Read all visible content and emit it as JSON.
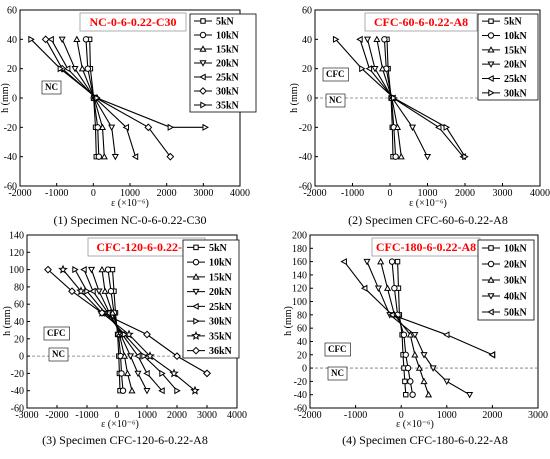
{
  "chart_data": [
    {
      "type": "line",
      "title": "NC-0-6-0.22-C30",
      "caption": "(1) Specimen NC-0-6-0.22-C30",
      "xlabel": "ε (×10⁻⁶)",
      "ylabel": "h (mm)",
      "xlim": [
        -2000,
        4000
      ],
      "ylim": [
        -60,
        60
      ],
      "xticks": [
        -2000,
        -1000,
        0,
        1000,
        2000,
        3000,
        4000
      ],
      "yticks": [
        -60,
        -40,
        -20,
        0,
        20,
        40,
        60
      ],
      "grid": false,
      "legend_position": "top-right",
      "regions": [
        {
          "label": "NC"
        }
      ],
      "series": [
        {
          "name": "5kN",
          "marker": "square",
          "x": [
            -100,
            -80,
            10,
            60,
            80
          ],
          "y": [
            40,
            20,
            0,
            -20,
            -40
          ]
        },
        {
          "name": "10kN",
          "marker": "circle",
          "x": [
            -200,
            -150,
            10,
            120,
            150
          ],
          "y": [
            40,
            20,
            0,
            -20,
            -40
          ]
        },
        {
          "name": "15kN",
          "marker": "triangle-up",
          "x": [
            -450,
            -300,
            20,
            250,
            300
          ],
          "y": [
            40,
            20,
            0,
            -20,
            -40
          ]
        },
        {
          "name": "20kN",
          "marker": "triangle-down",
          "x": [
            -850,
            -500,
            30,
            500,
            600
          ],
          "y": [
            40,
            20,
            0,
            -20,
            -40
          ]
        },
        {
          "name": "25kN",
          "marker": "triangle-left",
          "x": [
            -1150,
            -700,
            50,
            900,
            1150
          ],
          "y": [
            40,
            20,
            0,
            -20,
            -40
          ]
        },
        {
          "name": "30kN",
          "marker": "diamond",
          "x": [
            -1300,
            -850,
            80,
            1500,
            2100
          ],
          "y": [
            40,
            20,
            0,
            -20,
            -40
          ]
        },
        {
          "name": "35kN",
          "marker": "triangle-right",
          "x": [
            -1700,
            -900,
            100,
            2100,
            3050
          ],
          "y": [
            40,
            20,
            0,
            -20,
            -20
          ]
        }
      ]
    },
    {
      "type": "line",
      "title": "CFC-60-6-0.22-A8",
      "caption": "(2) Specimen CFC-60-6-0.22-A8",
      "xlabel": "ε (×10⁻⁶)",
      "ylabel": "h (mm)",
      "xlim": [
        -2000,
        4000
      ],
      "ylim": [
        -60,
        60
      ],
      "xticks": [
        -2000,
        -1000,
        0,
        1000,
        2000,
        3000,
        4000
      ],
      "yticks": [
        -60,
        -40,
        -20,
        0,
        20,
        40,
        60
      ],
      "grid": false,
      "legend_position": "top-right",
      "regions": [
        {
          "label": "CFC"
        },
        {
          "label": "NC"
        }
      ],
      "interface_y": 0,
      "series": [
        {
          "name": "5kN",
          "marker": "square",
          "x": [
            -80,
            -50,
            30,
            60,
            80
          ],
          "y": [
            40,
            20,
            0,
            -20,
            -40
          ]
        },
        {
          "name": "10kN",
          "marker": "circle",
          "x": [
            -150,
            -100,
            40,
            100,
            150
          ],
          "y": [
            40,
            20,
            0,
            -20,
            -40
          ]
        },
        {
          "name": "15kN",
          "marker": "triangle-up",
          "x": [
            -350,
            -200,
            50,
            200,
            300
          ],
          "y": [
            40,
            20,
            0,
            -20,
            -40
          ]
        },
        {
          "name": "20kN",
          "marker": "triangle-down",
          "x": [
            -600,
            -400,
            60,
            600,
            1000
          ],
          "y": [
            40,
            20,
            0,
            -20,
            -40
          ]
        },
        {
          "name": "25kN",
          "marker": "triangle-left",
          "x": [
            -800,
            -550,
            80,
            1300,
            1950
          ],
          "y": [
            40,
            20,
            0,
            -20,
            -40
          ]
        },
        {
          "name": "30kN",
          "marker": "triangle-right",
          "x": [
            -1450,
            -750,
            100,
            1500,
            2000
          ],
          "y": [
            40,
            20,
            0,
            -20,
            -40
          ]
        }
      ]
    },
    {
      "type": "line",
      "title": "CFC-120-6-0.22-A8",
      "caption": "(3) Specimen CFC-120-6-0.22-A8",
      "xlabel": "ε (×10⁻⁶)",
      "ylabel": "h (mm)",
      "xlim": [
        -3000,
        4000
      ],
      "ylim": [
        -60,
        140
      ],
      "xticks": [
        -3000,
        -2000,
        -1000,
        0,
        1000,
        2000,
        3000,
        4000
      ],
      "yticks": [
        -60,
        -40,
        -20,
        0,
        20,
        40,
        60,
        80,
        100,
        120,
        140
      ],
      "grid": false,
      "legend_position": "top-right",
      "regions": [
        {
          "label": "CFC"
        },
        {
          "label": "NC"
        }
      ],
      "interface_y": 0,
      "series": [
        {
          "name": "5kN",
          "marker": "square",
          "x": [
            -150,
            -100,
            -50,
            20,
            60,
            80,
            100
          ],
          "y": [
            100,
            75,
            50,
            25,
            0,
            -20,
            -40
          ]
        },
        {
          "name": "10kN",
          "marker": "circle",
          "x": [
            -300,
            -200,
            -100,
            50,
            120,
            150,
            200
          ],
          "y": [
            100,
            75,
            50,
            25,
            0,
            -20,
            -40
          ]
        },
        {
          "name": "15kN",
          "marker": "triangle-up",
          "x": [
            -500,
            -400,
            -150,
            80,
            250,
            350,
            500
          ],
          "y": [
            100,
            75,
            50,
            25,
            0,
            -20,
            -40
          ]
        },
        {
          "name": "20kN",
          "marker": "triangle-down",
          "x": [
            -850,
            -600,
            -250,
            120,
            450,
            700,
            1000
          ],
          "y": [
            100,
            75,
            50,
            25,
            0,
            -20,
            -40
          ]
        },
        {
          "name": "25kN",
          "marker": "triangle-left",
          "x": [
            -1100,
            -800,
            -300,
            180,
            700,
            1000,
            1500
          ],
          "y": [
            100,
            75,
            50,
            25,
            0,
            -20,
            -40
          ]
        },
        {
          "name": "30kN",
          "marker": "triangle-right",
          "x": [
            -1400,
            -1000,
            -400,
            250,
            900,
            1500,
            2000
          ],
          "y": [
            100,
            75,
            50,
            25,
            0,
            -20,
            -40
          ]
        },
        {
          "name": "35kN",
          "marker": "star",
          "x": [
            -1800,
            -1200,
            -500,
            400,
            1100,
            1900,
            2600
          ],
          "y": [
            100,
            75,
            50,
            25,
            0,
            -20,
            -40
          ]
        },
        {
          "name": "36kN",
          "marker": "diamond",
          "x": [
            -2300,
            -1500,
            -500,
            1000,
            2000,
            3000,
            3000
          ],
          "y": [
            100,
            75,
            50,
            25,
            0,
            -20,
            -20
          ]
        }
      ]
    },
    {
      "type": "line",
      "title": "CFC-180-6-0.22-A8",
      "caption": "(4) Specimen CFC-180-6-0.22-A8",
      "xlabel": "ε (×10⁻⁶)",
      "ylabel": "h (mm)",
      "xlim": [
        -2000,
        3000
      ],
      "ylim": [
        -60,
        200
      ],
      "xticks": [
        -2000,
        -1000,
        0,
        1000,
        2000,
        3000
      ],
      "yticks": [
        -60,
        -40,
        -20,
        0,
        20,
        40,
        60,
        80,
        100,
        120,
        140,
        160,
        180,
        200
      ],
      "grid": false,
      "legend_position": "top-right",
      "regions": [
        {
          "label": "CFC"
        },
        {
          "label": "NC"
        }
      ],
      "interface_y": 0,
      "series": [
        {
          "name": "10kN",
          "marker": "square",
          "x": [
            -80,
            -60,
            -40,
            20,
            40,
            60,
            80,
            100
          ],
          "y": [
            160,
            120,
            80,
            50,
            20,
            0,
            -20,
            -40
          ]
        },
        {
          "name": "20kN",
          "marker": "circle",
          "x": [
            -200,
            -150,
            -80,
            60,
            100,
            150,
            200,
            250
          ],
          "y": [
            160,
            120,
            80,
            50,
            20,
            0,
            -20,
            -40
          ]
        },
        {
          "name": "30kN",
          "marker": "triangle-up",
          "x": [
            -450,
            -300,
            -150,
            200,
            300,
            400,
            500,
            600
          ],
          "y": [
            160,
            120,
            80,
            50,
            20,
            0,
            -20,
            -40
          ]
        },
        {
          "name": "40kN",
          "marker": "triangle-down",
          "x": [
            -750,
            -500,
            -250,
            300,
            500,
            700,
            1000,
            1500
          ],
          "y": [
            160,
            120,
            80,
            50,
            20,
            0,
            -20,
            -40
          ]
        },
        {
          "name": "50kN",
          "marker": "triangle-left",
          "x": [
            -1250,
            -800,
            -200,
            1000,
            2000,
            2000,
            2000,
            2000
          ],
          "y": [
            160,
            120,
            80,
            50,
            20,
            20,
            20,
            20
          ]
        }
      ]
    }
  ]
}
